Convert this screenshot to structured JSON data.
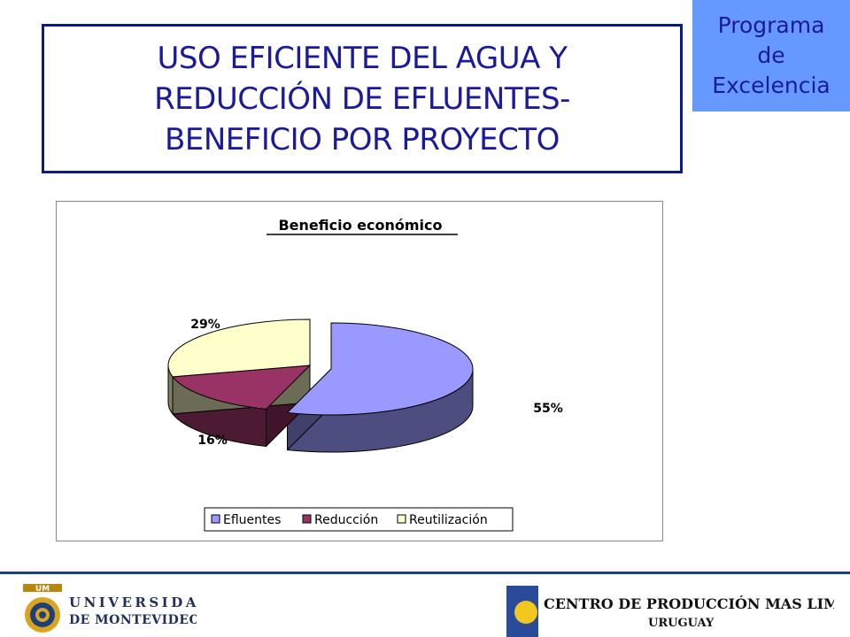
{
  "slide": {
    "title_lines": [
      "USO EFICIENTE DEL AGUA Y",
      "REDUCCIÓN DE EFLUENTES-",
      "BENEFICIO POR PROYECTO"
    ],
    "badge_lines": [
      "Programa",
      "de",
      "Excelencia"
    ]
  },
  "colors": {
    "title_text": "#1a1a9a",
    "badge_bg": "#6699ff",
    "efluentes": "#9999ff",
    "reduccion": "#993366",
    "reutilizacion": "#ffffcc"
  },
  "chart_data": {
    "type": "pie",
    "style": "3d-exploded",
    "title": "Beneficio económico",
    "categories": [
      "Efluentes",
      "Reducción",
      "Reutilización"
    ],
    "values": [
      55,
      16,
      29
    ],
    "data_labels": [
      "55%",
      "16%",
      "29%"
    ],
    "legend_position": "bottom"
  },
  "footer": {
    "left_logo": {
      "mark": "UM",
      "line1": "UNIVERSIDAD",
      "line2": "DE MONTEVIDEO"
    },
    "right_logo": {
      "line1": "CENTRO DE PRODUCCIÓN MAS LIMPIA",
      "line2": "URUGUAY"
    }
  }
}
